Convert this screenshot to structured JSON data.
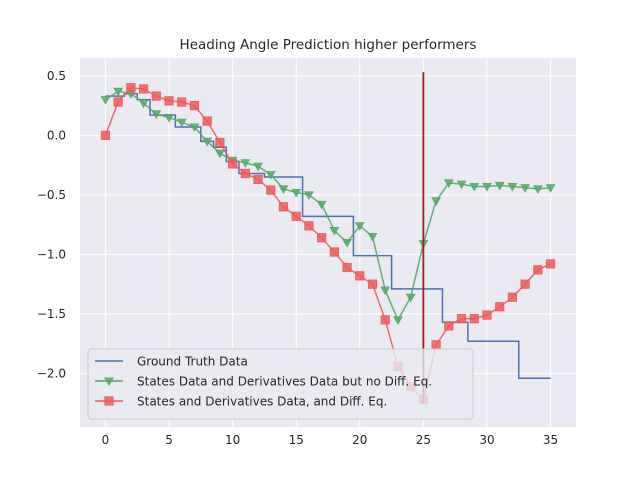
{
  "chart_data": {
    "type": "line",
    "title": "Heading Angle Prediction higher performers",
    "xlabel": "",
    "ylabel": "",
    "xlim": [
      -2,
      37
    ],
    "ylim": [
      -2.45,
      0.65
    ],
    "xticks": [
      0,
      5,
      10,
      15,
      20,
      25,
      30,
      35
    ],
    "yticks": [
      0.5,
      0.0,
      -0.5,
      -1.0,
      -1.5,
      -2.0
    ],
    "ytick_labels": [
      "0.5",
      "0.0",
      "−0.5",
      "−1.0",
      "−1.5",
      "−2.0"
    ],
    "grid": true,
    "legend_position": "lower-left",
    "vertical_line": {
      "x": 25,
      "y_from": -2.25,
      "y_to": 0.53,
      "color": "#a31d1d"
    },
    "series": [
      {
        "name": "Ground Truth Data",
        "color": "#4c72b0",
        "marker": "none",
        "drawstyle": "steps-mid",
        "x": [
          0,
          1,
          2,
          3,
          4,
          5,
          6,
          7,
          8,
          9,
          10,
          11,
          12,
          13,
          14,
          15,
          16,
          17,
          18,
          19,
          20,
          21,
          22,
          23,
          24,
          25,
          26,
          27,
          28,
          29,
          30,
          31,
          32,
          33,
          34,
          35
        ],
        "y": [
          0.33,
          0.33,
          0.35,
          0.3,
          0.17,
          0.17,
          0.07,
          0.07,
          -0.05,
          -0.1,
          -0.22,
          -0.32,
          -0.32,
          -0.35,
          -0.35,
          -0.35,
          -0.68,
          -0.68,
          -0.68,
          -0.68,
          -1.01,
          -1.01,
          -1.01,
          -1.29,
          -1.29,
          -1.29,
          -1.29,
          -1.57,
          -1.57,
          -1.73,
          -1.73,
          -1.73,
          -1.73,
          -2.04,
          -2.04,
          -2.04
        ]
      },
      {
        "name": "States Data and Derivatives Data but no Diff. Eq.",
        "color": "#55a868",
        "marker": "triangle-down",
        "x": [
          0,
          1,
          2,
          3,
          4,
          5,
          6,
          7,
          8,
          9,
          10,
          11,
          12,
          13,
          14,
          15,
          16,
          17,
          18,
          19,
          20,
          21,
          22,
          23,
          24,
          25,
          26,
          27,
          28,
          29,
          30,
          31,
          32,
          33,
          34,
          35
        ],
        "y": [
          0.3,
          0.37,
          0.35,
          0.27,
          0.18,
          0.15,
          0.11,
          0.07,
          -0.05,
          -0.15,
          -0.21,
          -0.23,
          -0.26,
          -0.33,
          -0.45,
          -0.48,
          -0.5,
          -0.58,
          -0.8,
          -0.9,
          -0.76,
          -0.85,
          -1.3,
          -1.55,
          -1.36,
          -0.91,
          -0.55,
          -0.4,
          -0.41,
          -0.43,
          -0.43,
          -0.42,
          -0.43,
          -0.44,
          -0.45,
          -0.44
        ]
      },
      {
        "name": "States and Derivatives Data, and Diff. Eq.",
        "color": "#ee5a5a",
        "marker": "square",
        "x": [
          0,
          1,
          2,
          3,
          4,
          5,
          6,
          7,
          8,
          9,
          10,
          11,
          12,
          13,
          14,
          15,
          16,
          17,
          18,
          19,
          20,
          21,
          22,
          23,
          24,
          25,
          26,
          27,
          28,
          29,
          30,
          31,
          32,
          33,
          34,
          35
        ],
        "y": [
          0.0,
          0.28,
          0.4,
          0.39,
          0.33,
          0.29,
          0.28,
          0.25,
          0.12,
          -0.06,
          -0.24,
          -0.32,
          -0.37,
          -0.46,
          -0.6,
          -0.68,
          -0.76,
          -0.86,
          -0.98,
          -1.11,
          -1.18,
          -1.25,
          -1.55,
          -1.94,
          -2.11,
          -2.22,
          -1.76,
          -1.6,
          -1.54,
          -1.54,
          -1.51,
          -1.44,
          -1.36,
          -1.25,
          -1.13,
          -1.08
        ]
      }
    ]
  }
}
